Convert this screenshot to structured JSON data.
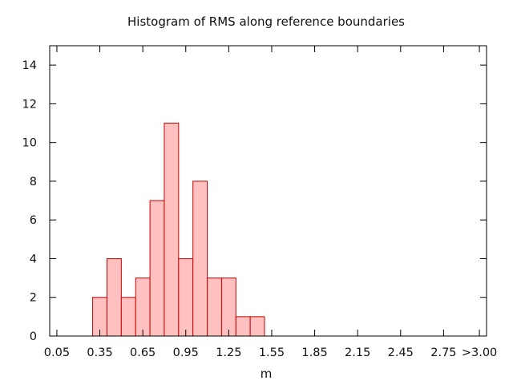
{
  "chart_data": {
    "type": "bar",
    "title": "Histogram of RMS along reference boundaries",
    "xlabel": "m",
    "ylabel": "",
    "bin_width": 0.1,
    "bins": [
      {
        "start": 0.3,
        "end": 0.4,
        "value": 2
      },
      {
        "start": 0.4,
        "end": 0.5,
        "value": 4
      },
      {
        "start": 0.5,
        "end": 0.6,
        "value": 2
      },
      {
        "start": 0.6,
        "end": 0.7,
        "value": 3
      },
      {
        "start": 0.7,
        "end": 0.8,
        "value": 7
      },
      {
        "start": 0.8,
        "end": 0.9,
        "value": 11
      },
      {
        "start": 0.9,
        "end": 1.0,
        "value": 4
      },
      {
        "start": 1.0,
        "end": 1.1,
        "value": 8
      },
      {
        "start": 1.1,
        "end": 1.2,
        "value": 3
      },
      {
        "start": 1.2,
        "end": 1.3,
        "value": 3
      },
      {
        "start": 1.3,
        "end": 1.4,
        "value": 1
      },
      {
        "start": 1.4,
        "end": 1.5,
        "value": 1
      }
    ],
    "xlim": [
      0.0,
      3.05
    ],
    "ylim": [
      0,
      15
    ],
    "x_ticks": [
      {
        "value": 0.05,
        "label": "0.05"
      },
      {
        "value": 0.35,
        "label": "0.35"
      },
      {
        "value": 0.65,
        "label": "0.65"
      },
      {
        "value": 0.95,
        "label": "0.95"
      },
      {
        "value": 1.25,
        "label": "1.25"
      },
      {
        "value": 1.55,
        "label": "1.55"
      },
      {
        "value": 1.85,
        "label": "1.85"
      },
      {
        "value": 2.15,
        "label": "2.15"
      },
      {
        "value": 2.45,
        "label": "2.45"
      },
      {
        "value": 2.75,
        "label": "2.75"
      },
      {
        "value": 3.0,
        "label": ">3.00"
      }
    ],
    "y_ticks": [
      {
        "value": 0,
        "label": "0"
      },
      {
        "value": 2,
        "label": "2"
      },
      {
        "value": 4,
        "label": "4"
      },
      {
        "value": 6,
        "label": "6"
      },
      {
        "value": 8,
        "label": "8"
      },
      {
        "value": 10,
        "label": "10"
      },
      {
        "value": 12,
        "label": "12"
      },
      {
        "value": 14,
        "label": "14"
      }
    ],
    "grid": false,
    "legend": "none",
    "colors": {
      "bar_fill": "#ffc0c0",
      "bar_stroke": "#cc0000",
      "axis": "#000000"
    }
  }
}
